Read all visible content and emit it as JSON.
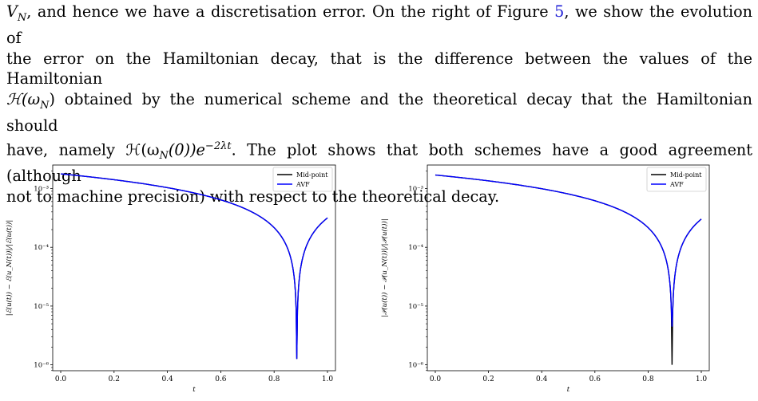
{
  "paragraph": {
    "line1": "V",
    "line1_sub": "N",
    "line1_rest": ", and hence we have a discretisation error. On the right of Figure ",
    "fig_num": "5",
    "line1_end": ", we show the evolution of",
    "line2": "the error on the Hamiltonian decay, that is the difference between the values of the Hamiltonian",
    "line3a": "ℋ(ω",
    "line3_sub": "N",
    "line3b": ") obtained by the numerical scheme and the theoretical decay that the Hamiltonian should",
    "line4a": "have, namely ℋ(ω",
    "line4_sub": "N",
    "line4b": "(0))e",
    "line4_sup": "−2λt",
    "line4c": ". The plot shows that both schemes have a good agreement (although",
    "line5": "not to machine precision) with respect to the theoretical decay."
  },
  "chart_data": [
    {
      "type": "line",
      "ylabel": "|ℰ(u(t)) − ℰ(u_N(t))|/|ℰ(u(t))|",
      "xlabel": "t",
      "yscale": "log",
      "xlim": [
        -0.03,
        1.03
      ],
      "ylim_log10": [
        -6.1,
        -2.6
      ],
      "xticks": [
        "0.0",
        "0.2",
        "0.4",
        "0.6",
        "0.8",
        "1.0"
      ],
      "yticks": [
        "10⁻³",
        "10⁻⁴",
        "10⁻⁵",
        "10⁻⁶"
      ],
      "legend": [
        "Mid-point",
        "AVF"
      ],
      "legend_position": "top-right",
      "dip_t": 0.885,
      "dip_log10": -5.9,
      "end_log10": -3.5,
      "start_log10": -2.75
    },
    {
      "type": "line",
      "ylabel": "|𝒫(u(t)) − 𝒫(u_N(t))|/|𝒫(u(t))|",
      "xlabel": "t",
      "yscale": "log",
      "xlim": [
        -0.03,
        1.03
      ],
      "ylim_log10": [
        -6.1,
        -2.6
      ],
      "xticks": [
        "0.0",
        "0.2",
        "0.4",
        "0.6",
        "0.8",
        "1.0"
      ],
      "yticks": [
        "10⁻³",
        "10⁻⁴",
        "10⁻⁵",
        "10⁻⁶"
      ],
      "legend": [
        "Mid-point",
        "AVF"
      ],
      "legend_position": "top-right",
      "dip_t": 0.89,
      "dip_log10": -6.0,
      "avf_dip_log10": -5.35,
      "end_log10": -3.52,
      "start_log10": -2.77
    }
  ],
  "colors": {
    "midpoint": "#000000",
    "avf": "#0000ff",
    "link": "#1f1fd6"
  }
}
